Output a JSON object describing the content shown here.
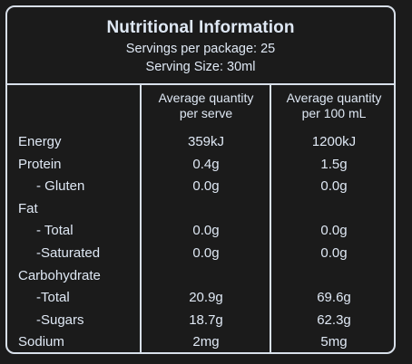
{
  "header": {
    "title": "Nutritional Information",
    "servings_per_package": "Servings per package: 25",
    "serving_size": "Serving Size: 30ml"
  },
  "columns": {
    "per_serve_line1": "Average quantity",
    "per_serve_line2": "per serve",
    "per_100_line1": "Average quantity",
    "per_100_line2": "per 100 mL"
  },
  "rows": [
    {
      "label": "Energy",
      "per_serve": "359kJ",
      "per_100": "1200kJ"
    },
    {
      "label": "Protein",
      "per_serve": "0.4g",
      "per_100": "1.5g"
    },
    {
      "label": "- Gluten",
      "per_serve": "0.0g",
      "per_100": "0.0g"
    },
    {
      "label": "Fat",
      "per_serve": "",
      "per_100": ""
    },
    {
      "label": "- Total",
      "per_serve": "0.0g",
      "per_100": "0.0g"
    },
    {
      "label": "-Saturated",
      "per_serve": "0.0g",
      "per_100": "0.0g"
    },
    {
      "label": "Carbohydrate",
      "per_serve": "",
      "per_100": ""
    },
    {
      "label": "-Total",
      "per_serve": "20.9g",
      "per_100": "69.6g"
    },
    {
      "label": "-Sugars",
      "per_serve": "18.7g",
      "per_100": "62.3g"
    },
    {
      "label": "Sodium",
      "per_serve": "2mg",
      "per_100": "5mg"
    }
  ],
  "colors": {
    "background": "#1b1b1b",
    "text": "#dfe8f4",
    "border": "#d8e0ea"
  }
}
